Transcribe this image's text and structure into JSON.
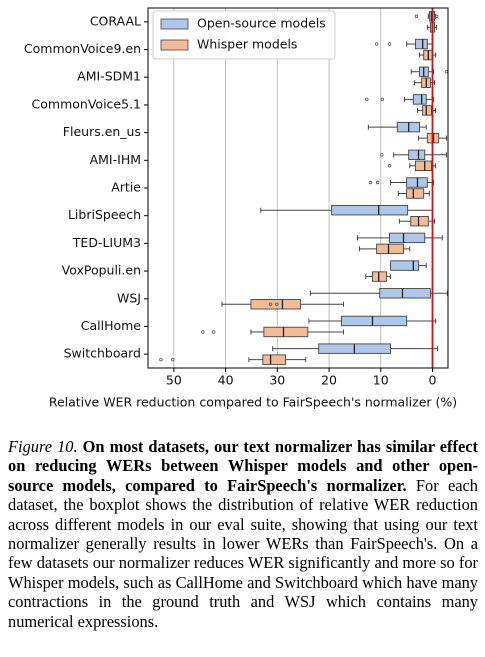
{
  "chart_data": {
    "type": "boxplot",
    "orientation": "horizontal",
    "xlabel": "Relative WER reduction compared to FairSpeech's normalizer (%)",
    "categories": [
      "CORAAL",
      "CommonVoice9.en",
      "AMI-SDM1",
      "CommonVoice5.1",
      "Fleurs.en_us",
      "AMI-IHM",
      "Artie",
      "LibriSpeech",
      "TED-LIUM3",
      "VoxPopuli.en",
      "WSJ",
      "CallHome",
      "Switchboard"
    ],
    "xlim": [
      55,
      -3
    ],
    "xticks": [
      50,
      40,
      30,
      20,
      10,
      0
    ],
    "grid": true,
    "legend": "upper left",
    "reference_line": {
      "value": 0,
      "color": "#cc1111"
    },
    "series": [
      {
        "name": "Open-source models",
        "color": "#aec6e8",
        "whisker_low": [
          -0.6,
          0,
          -0.2,
          -0.2,
          1.2,
          -2.7,
          -0.2,
          0,
          -1.9,
          1.2,
          -2.9,
          -0.6,
          -1.0
        ],
        "q1": [
          -0.4,
          1.0,
          0.8,
          1.2,
          2.5,
          1.5,
          1.0,
          4.8,
          1.5,
          2.7,
          0.4,
          5.0,
          8.1
        ],
        "median": [
          0.2,
          1.9,
          1.7,
          2.1,
          4.6,
          2.7,
          2.9,
          10.4,
          5.6,
          3.7,
          5.8,
          11.6,
          15.1
        ],
        "q3": [
          0.6,
          3.3,
          2.5,
          3.7,
          6.8,
          4.6,
          5.0,
          19.5,
          8.3,
          8.1,
          10.2,
          17.6,
          22.0
        ],
        "whisker_high": [
          0.8,
          5.0,
          4.1,
          5.4,
          12.4,
          7.5,
          8.1,
          33.2,
          14.5,
          8.1,
          23.6,
          23.9,
          30.9
        ],
        "outliers": [
          [
            3.1,
            -0.8
          ],
          [
            10.8,
            8.3
          ],
          [
            -2.7
          ],
          [
            12.7,
            9.7
          ],
          [],
          [
            9.8
          ],
          [
            12.0,
            10.6
          ],
          [],
          [],
          [],
          [],
          [],
          []
        ]
      },
      {
        "name": "Whisper models",
        "color": "#f2bb98",
        "whisker_low": [
          -0.8,
          -0.6,
          -0.4,
          -0.6,
          -2.7,
          -0.6,
          0.6,
          -0.4,
          4.4,
          8.1,
          17.2,
          17.2,
          24.5
        ],
        "q1": [
          -0.4,
          0,
          0.4,
          0.2,
          -1.2,
          0.2,
          1.7,
          0.8,
          5.6,
          8.9,
          25.5,
          24.1,
          28.4
        ],
        "median": [
          0,
          0.8,
          1.2,
          1.2,
          -0.2,
          1.5,
          3.7,
          2.7,
          8.5,
          10.4,
          29.0,
          28.8,
          31.3
        ],
        "q3": [
          0.4,
          1.7,
          2.1,
          1.9,
          1.0,
          3.3,
          5.0,
          4.2,
          10.8,
          11.6,
          35.1,
          32.6,
          32.8
        ],
        "whisker_high": [
          1.0,
          2.5,
          3.5,
          2.9,
          2.7,
          4.4,
          6.6,
          6.4,
          14.1,
          12.9,
          40.7,
          35.1,
          35.5
        ],
        "outliers": [
          [],
          [],
          [],
          [],
          [],
          [
            8.3
          ],
          [],
          [],
          [],
          [],
          [
            31.3,
            30.1
          ],
          [
            44.4,
            42.3
          ],
          [
            52.5,
            50.2
          ]
        ]
      }
    ]
  },
  "caption": {
    "label": "Figure 10.",
    "title": "On most datasets, our text normalizer has similar effect on reducing WERs between Whisper models and other open-source models, compared to FairSpeech's normalizer.",
    "text": "For each dataset, the boxplot shows the distribution of relative WER reduction across different models in our eval suite, showing that using our text normalizer generally results in lower WERs than FairSpeech's. On a few datasets our normalizer reduces WER significantly and more so for Whisper models, such as CallHome and Switchboard which have many contractions in the ground truth and WSJ which contains many numerical expressions."
  }
}
